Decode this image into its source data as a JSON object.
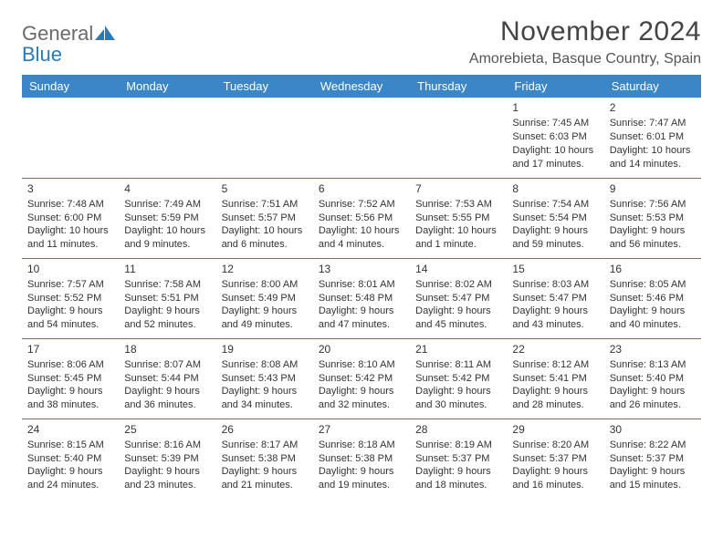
{
  "logo": {
    "text1": "General",
    "text2": "Blue"
  },
  "title": "November 2024",
  "location": "Amorebieta, Basque Country, Spain",
  "colors": {
    "header_bg": "#3b86c6",
    "header_text": "#ffffff",
    "border": "#5a7a9a",
    "logo_gray": "#6a6a6a",
    "logo_blue": "#2a7ab8"
  },
  "dayHeaders": [
    "Sunday",
    "Monday",
    "Tuesday",
    "Wednesday",
    "Thursday",
    "Friday",
    "Saturday"
  ],
  "weeks": [
    [
      {
        "n": "",
        "sr": "",
        "ss": "",
        "dl": ""
      },
      {
        "n": "",
        "sr": "",
        "ss": "",
        "dl": ""
      },
      {
        "n": "",
        "sr": "",
        "ss": "",
        "dl": ""
      },
      {
        "n": "",
        "sr": "",
        "ss": "",
        "dl": ""
      },
      {
        "n": "",
        "sr": "",
        "ss": "",
        "dl": ""
      },
      {
        "n": "1",
        "sr": "Sunrise: 7:45 AM",
        "ss": "Sunset: 6:03 PM",
        "dl": "Daylight: 10 hours and 17 minutes."
      },
      {
        "n": "2",
        "sr": "Sunrise: 7:47 AM",
        "ss": "Sunset: 6:01 PM",
        "dl": "Daylight: 10 hours and 14 minutes."
      }
    ],
    [
      {
        "n": "3",
        "sr": "Sunrise: 7:48 AM",
        "ss": "Sunset: 6:00 PM",
        "dl": "Daylight: 10 hours and 11 minutes."
      },
      {
        "n": "4",
        "sr": "Sunrise: 7:49 AM",
        "ss": "Sunset: 5:59 PM",
        "dl": "Daylight: 10 hours and 9 minutes."
      },
      {
        "n": "5",
        "sr": "Sunrise: 7:51 AM",
        "ss": "Sunset: 5:57 PM",
        "dl": "Daylight: 10 hours and 6 minutes."
      },
      {
        "n": "6",
        "sr": "Sunrise: 7:52 AM",
        "ss": "Sunset: 5:56 PM",
        "dl": "Daylight: 10 hours and 4 minutes."
      },
      {
        "n": "7",
        "sr": "Sunrise: 7:53 AM",
        "ss": "Sunset: 5:55 PM",
        "dl": "Daylight: 10 hours and 1 minute."
      },
      {
        "n": "8",
        "sr": "Sunrise: 7:54 AM",
        "ss": "Sunset: 5:54 PM",
        "dl": "Daylight: 9 hours and 59 minutes."
      },
      {
        "n": "9",
        "sr": "Sunrise: 7:56 AM",
        "ss": "Sunset: 5:53 PM",
        "dl": "Daylight: 9 hours and 56 minutes."
      }
    ],
    [
      {
        "n": "10",
        "sr": "Sunrise: 7:57 AM",
        "ss": "Sunset: 5:52 PM",
        "dl": "Daylight: 9 hours and 54 minutes."
      },
      {
        "n": "11",
        "sr": "Sunrise: 7:58 AM",
        "ss": "Sunset: 5:51 PM",
        "dl": "Daylight: 9 hours and 52 minutes."
      },
      {
        "n": "12",
        "sr": "Sunrise: 8:00 AM",
        "ss": "Sunset: 5:49 PM",
        "dl": "Daylight: 9 hours and 49 minutes."
      },
      {
        "n": "13",
        "sr": "Sunrise: 8:01 AM",
        "ss": "Sunset: 5:48 PM",
        "dl": "Daylight: 9 hours and 47 minutes."
      },
      {
        "n": "14",
        "sr": "Sunrise: 8:02 AM",
        "ss": "Sunset: 5:47 PM",
        "dl": "Daylight: 9 hours and 45 minutes."
      },
      {
        "n": "15",
        "sr": "Sunrise: 8:03 AM",
        "ss": "Sunset: 5:47 PM",
        "dl": "Daylight: 9 hours and 43 minutes."
      },
      {
        "n": "16",
        "sr": "Sunrise: 8:05 AM",
        "ss": "Sunset: 5:46 PM",
        "dl": "Daylight: 9 hours and 40 minutes."
      }
    ],
    [
      {
        "n": "17",
        "sr": "Sunrise: 8:06 AM",
        "ss": "Sunset: 5:45 PM",
        "dl": "Daylight: 9 hours and 38 minutes."
      },
      {
        "n": "18",
        "sr": "Sunrise: 8:07 AM",
        "ss": "Sunset: 5:44 PM",
        "dl": "Daylight: 9 hours and 36 minutes."
      },
      {
        "n": "19",
        "sr": "Sunrise: 8:08 AM",
        "ss": "Sunset: 5:43 PM",
        "dl": "Daylight: 9 hours and 34 minutes."
      },
      {
        "n": "20",
        "sr": "Sunrise: 8:10 AM",
        "ss": "Sunset: 5:42 PM",
        "dl": "Daylight: 9 hours and 32 minutes."
      },
      {
        "n": "21",
        "sr": "Sunrise: 8:11 AM",
        "ss": "Sunset: 5:42 PM",
        "dl": "Daylight: 9 hours and 30 minutes."
      },
      {
        "n": "22",
        "sr": "Sunrise: 8:12 AM",
        "ss": "Sunset: 5:41 PM",
        "dl": "Daylight: 9 hours and 28 minutes."
      },
      {
        "n": "23",
        "sr": "Sunrise: 8:13 AM",
        "ss": "Sunset: 5:40 PM",
        "dl": "Daylight: 9 hours and 26 minutes."
      }
    ],
    [
      {
        "n": "24",
        "sr": "Sunrise: 8:15 AM",
        "ss": "Sunset: 5:40 PM",
        "dl": "Daylight: 9 hours and 24 minutes."
      },
      {
        "n": "25",
        "sr": "Sunrise: 8:16 AM",
        "ss": "Sunset: 5:39 PM",
        "dl": "Daylight: 9 hours and 23 minutes."
      },
      {
        "n": "26",
        "sr": "Sunrise: 8:17 AM",
        "ss": "Sunset: 5:38 PM",
        "dl": "Daylight: 9 hours and 21 minutes."
      },
      {
        "n": "27",
        "sr": "Sunrise: 8:18 AM",
        "ss": "Sunset: 5:38 PM",
        "dl": "Daylight: 9 hours and 19 minutes."
      },
      {
        "n": "28",
        "sr": "Sunrise: 8:19 AM",
        "ss": "Sunset: 5:37 PM",
        "dl": "Daylight: 9 hours and 18 minutes."
      },
      {
        "n": "29",
        "sr": "Sunrise: 8:20 AM",
        "ss": "Sunset: 5:37 PM",
        "dl": "Daylight: 9 hours and 16 minutes."
      },
      {
        "n": "30",
        "sr": "Sunrise: 8:22 AM",
        "ss": "Sunset: 5:37 PM",
        "dl": "Daylight: 9 hours and 15 minutes."
      }
    ]
  ]
}
